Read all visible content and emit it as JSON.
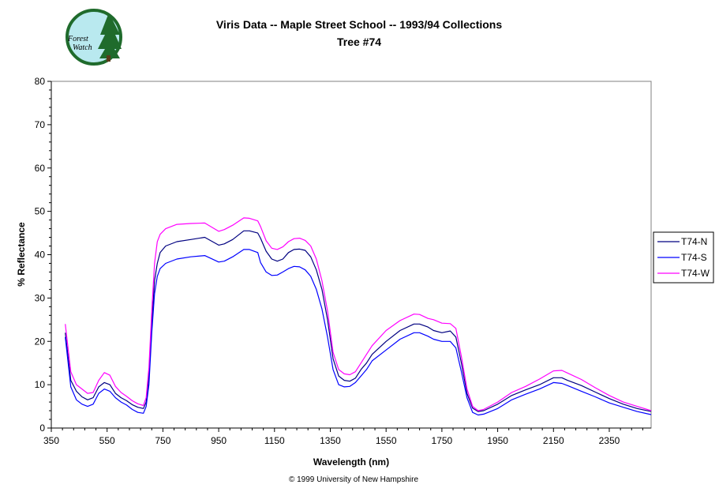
{
  "chart_data": {
    "type": "line",
    "title": "Viris Data -- Maple Street School -- 1993/94 Collections",
    "subtitle": "Tree #74",
    "xlabel": "Wavelength (nm)",
    "ylabel": "% Reflectance",
    "xlim": [
      350,
      2500
    ],
    "ylim": [
      0,
      80
    ],
    "xticks": [
      350,
      550,
      750,
      950,
      1150,
      1350,
      1550,
      1750,
      1950,
      2150,
      2350
    ],
    "yticks": [
      0,
      10,
      20,
      30,
      40,
      50,
      60,
      70,
      80
    ],
    "grid": false,
    "legend_position": "right",
    "x": [
      400,
      420,
      440,
      460,
      480,
      500,
      520,
      540,
      560,
      580,
      600,
      620,
      640,
      660,
      680,
      690,
      700,
      710,
      720,
      730,
      740,
      760,
      800,
      850,
      900,
      950,
      970,
      1000,
      1040,
      1060,
      1090,
      1100,
      1120,
      1140,
      1160,
      1180,
      1200,
      1220,
      1240,
      1260,
      1280,
      1300,
      1320,
      1340,
      1360,
      1380,
      1400,
      1420,
      1440,
      1460,
      1480,
      1500,
      1550,
      1600,
      1650,
      1670,
      1700,
      1720,
      1750,
      1780,
      1800,
      1820,
      1840,
      1860,
      1880,
      1900,
      1950,
      2000,
      2050,
      2100,
      2150,
      2180,
      2200,
      2250,
      2300,
      2350,
      2400,
      2450,
      2500
    ],
    "series": [
      {
        "name": "T74-N",
        "color": "#000080",
        "values": [
          22,
          11,
          8.5,
          7.2,
          6.5,
          7,
          9.5,
          10.5,
          10,
          8,
          7,
          6.3,
          5.4,
          4.8,
          4.5,
          6,
          12,
          24,
          34,
          38,
          40.5,
          42,
          43,
          43.5,
          44,
          42.2,
          42.5,
          43.5,
          45.5,
          45.5,
          45,
          43.8,
          40.8,
          39,
          38.5,
          39,
          40.5,
          41.2,
          41.3,
          41,
          39.5,
          36.5,
          32,
          25,
          16,
          12,
          11,
          10.8,
          11.5,
          13.5,
          15,
          17,
          20,
          22.5,
          24,
          24,
          23.3,
          22.5,
          22,
          22.4,
          21,
          15,
          8,
          4.6,
          3.8,
          4,
          5.5,
          7.5,
          8.8,
          10,
          11.6,
          11.6,
          11,
          9.8,
          8.3,
          6.8,
          5.5,
          4.5,
          3.8
        ]
      },
      {
        "name": "T74-S",
        "color": "#0000ff",
        "values": [
          21,
          9.5,
          6.5,
          5.5,
          5,
          5.5,
          8,
          9,
          8.5,
          7,
          6,
          5.3,
          4.3,
          3.6,
          3.4,
          5,
          10,
          22,
          31,
          35,
          36.8,
          38,
          39,
          39.5,
          39.8,
          38.3,
          38.5,
          39.5,
          41.2,
          41.2,
          40.5,
          38.2,
          36,
          35.2,
          35.3,
          36,
          36.8,
          37.3,
          37.2,
          36.5,
          35,
          32,
          27.5,
          21,
          13.5,
          10,
          9.5,
          9.6,
          10.5,
          12,
          13.5,
          15.5,
          18,
          20.5,
          22,
          22,
          21.2,
          20.5,
          20,
          20,
          18.5,
          13,
          7,
          3.6,
          3,
          3.2,
          4.5,
          6.5,
          7.8,
          9,
          10.5,
          10.3,
          9.8,
          8.5,
          7.2,
          5.8,
          4.8,
          3.8,
          3.1
        ]
      },
      {
        "name": "T74-W",
        "color": "#ff00ff",
        "values": [
          24,
          13,
          10,
          9,
          8,
          8.2,
          11,
          12.8,
          12.2,
          9.6,
          8.2,
          7.3,
          6.3,
          5.6,
          5.2,
          7,
          14,
          27,
          38,
          43,
          44.7,
          46,
          47,
          47.2,
          47.3,
          45.4,
          45.8,
          46.8,
          48.5,
          48.4,
          47.8,
          46.5,
          43.2,
          41.5,
          41.2,
          41.8,
          43,
          43.7,
          43.8,
          43.3,
          42,
          39,
          34,
          27,
          17.5,
          13.5,
          12.5,
          12.3,
          13,
          15,
          17,
          19,
          22.5,
          24.8,
          26.3,
          26.2,
          25.3,
          25,
          24.2,
          24.1,
          23,
          16.5,
          9,
          5,
          4,
          4.3,
          6,
          8.2,
          9.6,
          11.3,
          13.2,
          13.3,
          12.7,
          11.2,
          9.3,
          7.5,
          6,
          5,
          4
        ]
      }
    ]
  },
  "logo": {
    "text_line1": "Forest",
    "text_line2": "Watch"
  },
  "footer": {
    "copyright": "© 1999 University of New Hampshire"
  }
}
